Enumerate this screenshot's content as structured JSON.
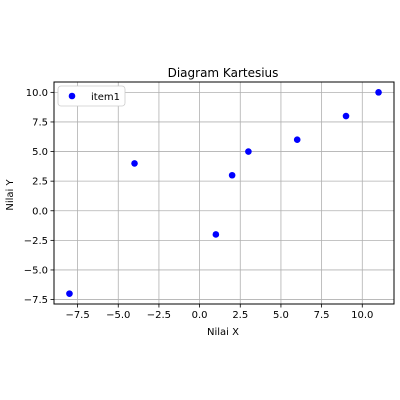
{
  "chart_data": {
    "type": "scatter",
    "title": "Diagram Kartesius",
    "xlabel": "Nilai X",
    "ylabel": "Nilai Y",
    "xlim": [
      -8.95,
      11.95
    ],
    "ylim": [
      -7.875,
      10.875
    ],
    "grid": true,
    "legend_position": "upper-left",
    "x_ticks": [
      {
        "value": -7.5,
        "label": "−7.5"
      },
      {
        "value": -5.0,
        "label": "−5.0"
      },
      {
        "value": -2.5,
        "label": "−2.5"
      },
      {
        "value": 0.0,
        "label": "0.0"
      },
      {
        "value": 2.5,
        "label": "2.5"
      },
      {
        "value": 5.0,
        "label": "5.0"
      },
      {
        "value": 7.5,
        "label": "7.5"
      },
      {
        "value": 10.0,
        "label": "10.0"
      }
    ],
    "y_ticks": [
      {
        "value": -7.5,
        "label": "−7.5"
      },
      {
        "value": -5.0,
        "label": "−5.0"
      },
      {
        "value": -2.5,
        "label": "−2.5"
      },
      {
        "value": 0.0,
        "label": "0.0"
      },
      {
        "value": 2.5,
        "label": "2.5"
      },
      {
        "value": 5.0,
        "label": "5.0"
      },
      {
        "value": 7.5,
        "label": "7.5"
      },
      {
        "value": 10.0,
        "label": "10.0"
      }
    ],
    "series": [
      {
        "name": "item1",
        "color": "#0000ff",
        "x": [
          -8,
          -4,
          1,
          2,
          3,
          6,
          9,
          11
        ],
        "y": [
          -7,
          4,
          -2,
          3,
          5,
          6,
          8,
          10
        ]
      }
    ]
  }
}
